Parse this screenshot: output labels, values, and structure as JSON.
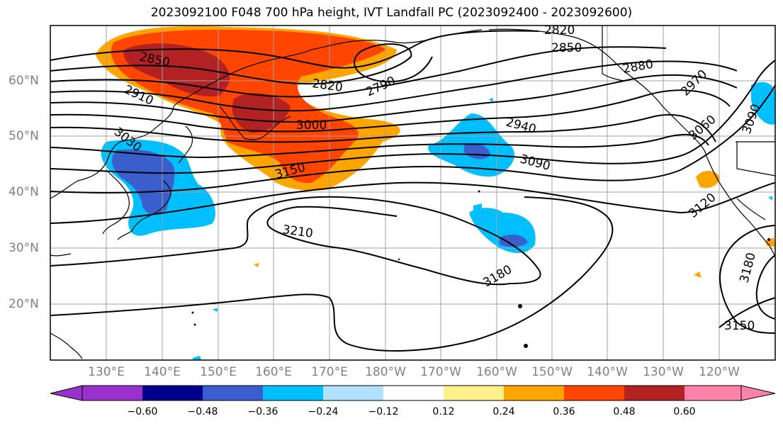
{
  "title": "2023092100 F048 700 hPa height, IVT Landfall PC (2023092400 - 2023092600)",
  "lat_labels": [
    "60°N",
    "50°N",
    "40°N",
    "30°N",
    "20°N"
  ],
  "lon_labels": [
    "130°E",
    "140°E",
    "150°E",
    "160°E",
    "170°E",
    "180°W",
    "170°W",
    "160°W",
    "150°W",
    "140°W",
    "130°W",
    "120°W"
  ],
  "contour_labels": [
    "2820",
    "2850",
    "2880",
    "2970",
    "3060",
    "3090",
    "2850",
    "2910",
    "3030",
    "2820",
    "2790",
    "3000",
    "2940",
    "3090",
    "3150",
    "3210",
    "3180",
    "3120",
    "3180",
    "3150"
  ],
  "colorbar": {
    "ticks": [
      "−0.60",
      "−0.48",
      "−0.36",
      "−0.24",
      "−0.12",
      "0.12",
      "0.24",
      "0.36",
      "0.48",
      "0.60"
    ],
    "colors": [
      "#9932cc",
      "#00008b",
      "#3a5fcd",
      "#00bfff",
      "#b0e2ff",
      "#ffffff",
      "#fff08c",
      "#ffa500",
      "#ff4500",
      "#b22222",
      "#ff82ab"
    ]
  },
  "fill_colors": {
    "orange": "#ffa500",
    "red_orange": "#ff4500",
    "dark_red": "#b22222",
    "light_blue": "#00bfff",
    "royal_blue": "#3a5fcd"
  }
}
